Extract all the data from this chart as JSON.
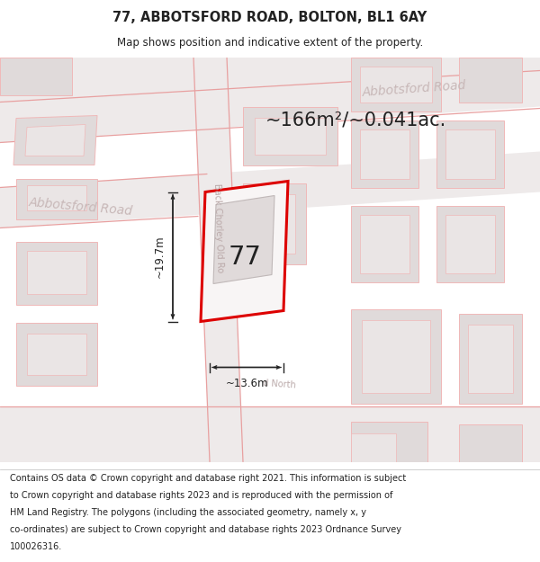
{
  "title": "77, ABBOTSFORD ROAD, BOLTON, BL1 6AY",
  "subtitle": "Map shows position and indicative extent of the property.",
  "area_text": "~166m²/~0.041ac.",
  "label_77": "77",
  "dim_width": "~13.6m",
  "dim_height": "~19.7m",
  "road_label_left": "Abbotsford Road",
  "road_label_top": "Abbotsford Road",
  "road_label_diagonal": "Back Chorley Old Ro",
  "road_label_bottom": "d North",
  "footer_lines": [
    "Contains OS data © Crown copyright and database right 2021. This information is subject",
    "to Crown copyright and database rights 2023 and is reproduced with the permission of",
    "HM Land Registry. The polygons (including the associated geometry, namely x, y",
    "co-ordinates) are subject to Crown copyright and database rights 2023 Ordnance Survey",
    "100026316."
  ],
  "map_bg": "#f5f2f2",
  "road_fill": "#eeeaea",
  "building_outer": "#e0dada",
  "building_inner": "#eae5e5",
  "red_outline": "#dd0000",
  "pink_line": "#e8a0a0",
  "pink_line2": "#f0b8b8",
  "white": "#ffffff",
  "text_dark": "#222222",
  "text_road": "#c8b8b8",
  "text_gray": "#999999"
}
